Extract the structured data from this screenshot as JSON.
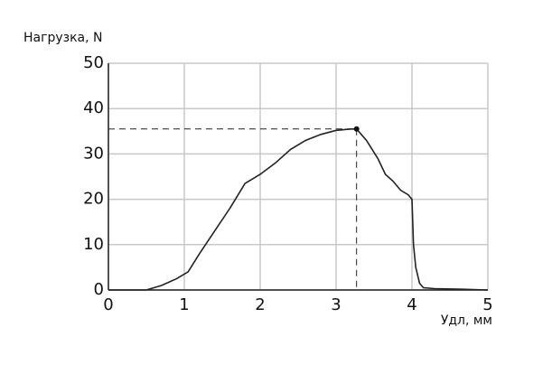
{
  "chart_data": {
    "type": "line",
    "y_label": "Нагрузка, N",
    "x_label": "Удл, мм",
    "x": [
      0,
      0.5,
      0.7,
      0.9,
      1.05,
      1.2,
      1.4,
      1.6,
      1.8,
      2.0,
      2.2,
      2.4,
      2.6,
      2.8,
      3.0,
      3.2,
      3.27,
      3.4,
      3.55,
      3.65,
      3.75,
      3.85,
      3.95,
      4.0,
      4.02,
      4.05,
      4.1,
      4.15,
      4.3,
      4.6,
      5.0
    ],
    "values": [
      0,
      0,
      1,
      2.5,
      4,
      8,
      13,
      18,
      23.5,
      25.5,
      28,
      31,
      33,
      34.3,
      35.2,
      35.5,
      35.5,
      33,
      29,
      25.5,
      24,
      22,
      21,
      20,
      10,
      5,
      1.5,
      0.5,
      0.3,
      0.2,
      0
    ],
    "color": "#222222",
    "highlight_point": {
      "x": 3.27,
      "y": 35.5
    },
    "xlim": [
      0,
      5
    ],
    "xticks": [
      0,
      1,
      2,
      3,
      4,
      5
    ],
    "ylim": [
      0,
      50
    ],
    "yticks": [
      0,
      10,
      20,
      30,
      40,
      50
    ],
    "grid": true
  }
}
